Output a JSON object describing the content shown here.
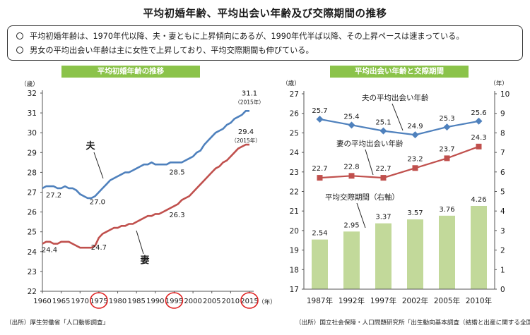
{
  "header": {
    "title": "平均初婚年齢、平均出会い年齢及び交際期間の推移"
  },
  "summary": {
    "items": [
      "平均初婚年齢は、1970年代以降、夫・妻ともに上昇傾向にあるが、1990年代半ば以降、その上昇ペースは速まっている。",
      "男女の平均出会い年齢は主に女性で上昇しており、平均交際期間も伸びている。"
    ]
  },
  "left_chart": {
    "banner": "平均初婚年齢の推移",
    "source": "（出所）厚生労働省「人口動態調査」"
  },
  "right_chart": {
    "banner": "平均出会い年齢と交際期間",
    "source": "（出所）国立社会保障・人口問題研究所「出生動向基本調査（結婚と出産に関する全国調査）」"
  },
  "colors": {
    "husband": "#4f81bd",
    "wife": "#c0504d",
    "bar_fill": "#c2d99a",
    "banner": "#8bc34a",
    "highlight_circle": "#e02020"
  },
  "chart_data": [
    {
      "type": "line",
      "y_unit": "（歳）",
      "x_unit": "（年）",
      "xlim": [
        1960,
        2015
      ],
      "ylim": [
        22,
        32
      ],
      "x_ticks": [
        1960,
        1965,
        1970,
        1975,
        1980,
        1985,
        1990,
        1995,
        2000,
        2005,
        2010,
        2015
      ],
      "y_ticks": [
        22,
        23,
        24,
        25,
        26,
        27,
        28,
        29,
        30,
        31,
        32
      ],
      "highlighted_x_ticks": [
        1975,
        1995,
        2015
      ],
      "grid": false,
      "x": [
        1960,
        1961,
        1962,
        1963,
        1964,
        1965,
        1966,
        1967,
        1968,
        1969,
        1970,
        1971,
        1972,
        1973,
        1974,
        1975,
        1976,
        1977,
        1978,
        1979,
        1980,
        1981,
        1982,
        1983,
        1984,
        1985,
        1986,
        1987,
        1988,
        1989,
        1990,
        1991,
        1992,
        1993,
        1994,
        1995,
        1996,
        1997,
        1998,
        1999,
        2000,
        2001,
        2002,
        2003,
        2004,
        2005,
        2006,
        2007,
        2008,
        2009,
        2010,
        2011,
        2012,
        2013,
        2014,
        2015
      ],
      "series": [
        {
          "name": "夫",
          "color": "#4f81bd",
          "values": [
            27.2,
            27.3,
            27.3,
            27.3,
            27.2,
            27.2,
            27.3,
            27.2,
            27.2,
            27.1,
            26.9,
            26.8,
            26.7,
            26.7,
            26.8,
            27.0,
            27.2,
            27.4,
            27.6,
            27.7,
            27.8,
            27.9,
            28.0,
            28.0,
            28.1,
            28.2,
            28.3,
            28.4,
            28.4,
            28.5,
            28.4,
            28.4,
            28.4,
            28.4,
            28.5,
            28.5,
            28.5,
            28.5,
            28.6,
            28.7,
            28.8,
            29.0,
            29.1,
            29.4,
            29.6,
            29.8,
            30.0,
            30.1,
            30.2,
            30.4,
            30.5,
            30.7,
            30.8,
            30.9,
            31.1,
            31.1
          ]
        },
        {
          "name": "妻",
          "color": "#c0504d",
          "values": [
            24.4,
            24.5,
            24.5,
            24.4,
            24.4,
            24.5,
            24.5,
            24.5,
            24.4,
            24.3,
            24.2,
            24.2,
            24.2,
            24.2,
            24.3,
            24.7,
            24.9,
            25.0,
            25.1,
            25.2,
            25.2,
            25.3,
            25.3,
            25.4,
            25.4,
            25.5,
            25.6,
            25.7,
            25.8,
            25.8,
            25.9,
            25.9,
            26.0,
            26.1,
            26.2,
            26.3,
            26.4,
            26.6,
            26.7,
            26.8,
            27.0,
            27.2,
            27.4,
            27.6,
            27.8,
            28.0,
            28.2,
            28.3,
            28.5,
            28.6,
            28.8,
            29.0,
            29.2,
            29.3,
            29.4,
            29.4
          ]
        }
      ],
      "annotations": [
        {
          "text": "27.2",
          "x": 1960,
          "y": 27.2
        },
        {
          "text": "27.0",
          "x": 1975,
          "y": 27.0
        },
        {
          "text": "28.5",
          "x": 1995,
          "y": 28.5
        },
        {
          "text": "31.1",
          "x": 2015,
          "y": 31.1
        },
        {
          "text": "（2015年）",
          "x": 2015,
          "y": 31.1
        },
        {
          "text": "24.4",
          "x": 1960,
          "y": 24.4
        },
        {
          "text": "24.7",
          "x": 1975,
          "y": 24.7
        },
        {
          "text": "26.3",
          "x": 1995,
          "y": 26.3
        },
        {
          "text": "29.4",
          "x": 2015,
          "y": 29.4
        },
        {
          "text": "（2015年）",
          "x": 2015,
          "y": 29.4
        }
      ]
    },
    {
      "type": "bar+line",
      "categories": [
        "1987年",
        "1992年",
        "1997年",
        "2002年",
        "2005年",
        "2010年"
      ],
      "left_axis_unit": "（歳）",
      "right_axis_unit": "（年）",
      "ylim_left": [
        17,
        27
      ],
      "ylim_right": [
        0,
        10
      ],
      "y_ticks_left": [
        17,
        18,
        19,
        20,
        21,
        22,
        23,
        24,
        25,
        26,
        27
      ],
      "y_ticks_right": [
        0,
        1,
        2,
        3,
        4,
        5,
        6,
        7,
        8,
        9,
        10
      ],
      "grid": false,
      "series": [
        {
          "name": "夫の平均出会い年齢",
          "type": "line",
          "axis": "left",
          "color": "#4f81bd",
          "values": [
            25.7,
            25.4,
            25.1,
            24.9,
            25.3,
            25.6
          ]
        },
        {
          "name": "妻の平均出会い年齢",
          "type": "line",
          "axis": "left",
          "color": "#c0504d",
          "values": [
            22.7,
            22.8,
            22.7,
            23.2,
            23.7,
            24.3
          ]
        },
        {
          "name": "平均交際期間（右軸）",
          "type": "bar",
          "axis": "right",
          "color": "#c2d99a",
          "values": [
            2.54,
            2.95,
            3.37,
            3.57,
            3.76,
            4.26
          ]
        }
      ]
    }
  ]
}
